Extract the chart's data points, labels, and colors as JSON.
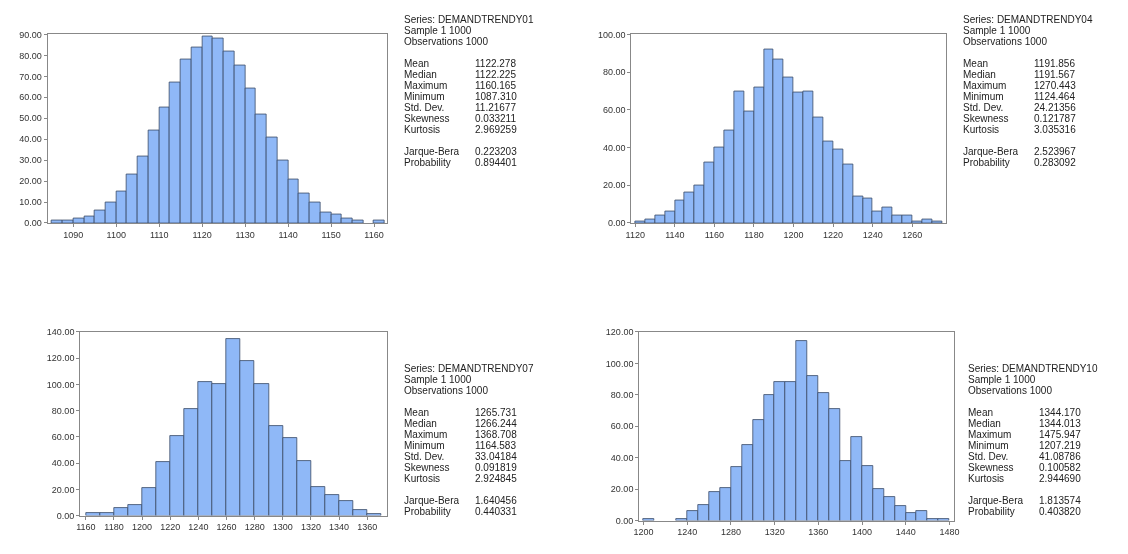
{
  "chart_data": [
    {
      "type": "histogram",
      "color": "#8fb8f7",
      "bins": [
        1085,
        1087.5,
        1090,
        1092.5,
        1095,
        1097.5,
        1100,
        1102.5,
        1105,
        1107.5,
        1110,
        1112.5,
        1115,
        1117.5,
        1120,
        1122.5,
        1125,
        1127.5,
        1130,
        1132.5,
        1135,
        1137.5,
        1140,
        1142.5,
        1145,
        1147.5,
        1150,
        1152.5,
        1155,
        1157.5,
        1160,
        1162.5
      ],
      "values": [
        1,
        1,
        2,
        3,
        6,
        10,
        15,
        23,
        32,
        44,
        55,
        67,
        78,
        84,
        89,
        88,
        82,
        75,
        64,
        52,
        41,
        30,
        21,
        14,
        10,
        5,
        4,
        2,
        1,
        0,
        1
      ],
      "xlim": [
        1084,
        1163
      ],
      "xticks": [
        1090,
        1100,
        1110,
        1120,
        1130,
        1140,
        1150,
        1160
      ],
      "ylim": [
        0,
        90
      ],
      "yticks": [
        {
          "value": 0,
          "label": "0.00"
        },
        {
          "value": 10,
          "label": "10.00"
        },
        {
          "value": 20,
          "label": "20.00"
        },
        {
          "value": 30,
          "label": "30.00"
        },
        {
          "value": 40,
          "label": "40.00"
        },
        {
          "value": 50,
          "label": "50.00"
        },
        {
          "value": 60,
          "label": "60.00"
        },
        {
          "value": 70,
          "label": "70.00"
        },
        {
          "value": 80,
          "label": "80.00"
        },
        {
          "value": 90,
          "label": "90.00"
        }
      ],
      "annotations": [
        "Series: DEMANDTRENDY01",
        "Sample 1 1000",
        "Observations 1000",
        "Mean",
        "1122.278",
        "Median",
        "1122.225",
        "Maximum",
        "1160.165",
        "Minimum",
        "1087.310",
        "Std. Dev.",
        "11.21677",
        "Skewness",
        "0.033211",
        "Kurtosis",
        "2.969259",
        "Jarque-Bera",
        "0.223203",
        "Probability",
        "0.894401"
      ]
    },
    {
      "type": "histogram",
      "color": "#8fb8f7",
      "bins": [
        1120,
        1125,
        1130,
        1135,
        1140,
        1145,
        1150,
        1155,
        1160,
        1165,
        1170,
        1175,
        1180,
        1185,
        1190,
        1195,
        1200,
        1205,
        1210,
        1215,
        1220,
        1225,
        1230,
        1235,
        1240,
        1245,
        1250,
        1255,
        1260,
        1265,
        1270,
        1275
      ],
      "values": [
        1,
        2,
        4,
        6,
        12,
        16,
        20,
        32,
        40,
        49,
        70,
        59,
        72,
        92,
        87,
        77,
        69,
        70,
        56,
        43,
        39,
        31,
        14,
        13,
        6,
        8,
        4,
        4,
        1,
        2,
        1
      ],
      "xlim": [
        1118,
        1277
      ],
      "xticks": [
        1120,
        1140,
        1160,
        1180,
        1200,
        1220,
        1240,
        1260
      ],
      "ylim": [
        0,
        100
      ],
      "yticks": [
        {
          "value": 0,
          "label": "0.00"
        },
        {
          "value": 20,
          "label": "20.00"
        },
        {
          "value": 40,
          "label": "40.00"
        },
        {
          "value": 60,
          "label": "60.00"
        },
        {
          "value": 80,
          "label": "80.00"
        },
        {
          "value": 100,
          "label": "100.00"
        }
      ],
      "annotations": [
        "Series: DEMANDTRENDY04",
        "Sample 1 1000",
        "Observations 1000",
        "Mean",
        "1191.856",
        "Median",
        "1191.567",
        "Maximum",
        "1270.443",
        "Minimum",
        "1124.464",
        "Std. Dev.",
        "24.21356",
        "Skewness",
        "0.121787",
        "Kurtosis",
        "3.035316",
        "Jarque-Bera",
        "2.523967",
        "Probability",
        "0.283092"
      ]
    },
    {
      "type": "histogram",
      "color": "#8fb8f7",
      "bins": [
        1160,
        1170,
        1180,
        1190,
        1200,
        1210,
        1220,
        1230,
        1240,
        1250,
        1260,
        1270,
        1280,
        1290,
        1300,
        1310,
        1320,
        1330,
        1340,
        1350,
        1360,
        1370
      ],
      "values": [
        2,
        2,
        6,
        8,
        21,
        41,
        61,
        81,
        102,
        100,
        135,
        118,
        100,
        68,
        59,
        42,
        22,
        16,
        11,
        4,
        1
      ],
      "xlim": [
        1156,
        1374
      ],
      "xticks": [
        1160,
        1180,
        1200,
        1220,
        1240,
        1260,
        1280,
        1300,
        1320,
        1340,
        1360
      ],
      "ylim": [
        0,
        140
      ],
      "yticks": [
        {
          "value": 0,
          "label": "0.00"
        },
        {
          "value": 20,
          "label": "20.00"
        },
        {
          "value": 40,
          "label": "40.00"
        },
        {
          "value": 60,
          "label": "60.00"
        },
        {
          "value": 80,
          "label": "80.00"
        },
        {
          "value": 100,
          "label": "100.00"
        },
        {
          "value": 120,
          "label": "120.00"
        },
        {
          "value": 140,
          "label": "140.00"
        }
      ],
      "annotations": [
        "Series: DEMANDTRENDY07",
        "Sample 1 1000",
        "Observations 1000",
        "Mean",
        "1265.731",
        "Median",
        "1266.244",
        "Maximum",
        "1368.708",
        "Minimum",
        "1164.583",
        "Std. Dev.",
        "33.04184",
        "Skewness",
        "0.091819",
        "Kurtosis",
        "2.924845",
        "Jarque-Bera",
        "1.640456",
        "Probability",
        "0.440331"
      ]
    },
    {
      "type": "histogram",
      "color": "#8fb8f7",
      "bins": [
        1200,
        1210,
        1220,
        1230,
        1240,
        1250,
        1260,
        1270,
        1280,
        1290,
        1300,
        1310,
        1320,
        1330,
        1340,
        1350,
        1360,
        1370,
        1380,
        1390,
        1400,
        1410,
        1420,
        1430,
        1440,
        1450,
        1460,
        1470,
        1480
      ],
      "values": [
        1,
        0,
        0,
        1,
        6,
        10,
        18,
        21,
        34,
        48,
        64,
        80,
        88,
        88,
        114,
        92,
        81,
        71,
        38,
        53,
        35,
        20,
        15,
        9,
        5,
        6,
        1,
        1
      ],
      "xlim": [
        1196,
        1484
      ],
      "xticks": [
        1200,
        1240,
        1280,
        1320,
        1360,
        1400,
        1440,
        1480
      ],
      "ylim": [
        0,
        120
      ],
      "yticks": [
        {
          "value": 0,
          "label": "0.00"
        },
        {
          "value": 20,
          "label": "20.00"
        },
        {
          "value": 40,
          "label": "40.00"
        },
        {
          "value": 60,
          "label": "60.00"
        },
        {
          "value": 80,
          "label": "80.00"
        },
        {
          "value": 100,
          "label": "100.00"
        },
        {
          "value": 120,
          "label": "120.00"
        }
      ],
      "annotations": [
        "Series: DEMANDTRENDY10",
        "Sample 1 1000",
        "Observations 1000",
        "Mean",
        "1344.170",
        "Median",
        "1344.013",
        "Maximum",
        "1475.947",
        "Minimum",
        "1207.219",
        "Std. Dev.",
        "41.08786",
        "Skewness",
        "0.100582",
        "Kurtosis",
        "2.944690",
        "Jarque-Bera",
        "1.813574",
        "Probability",
        "0.403820"
      ]
    }
  ]
}
